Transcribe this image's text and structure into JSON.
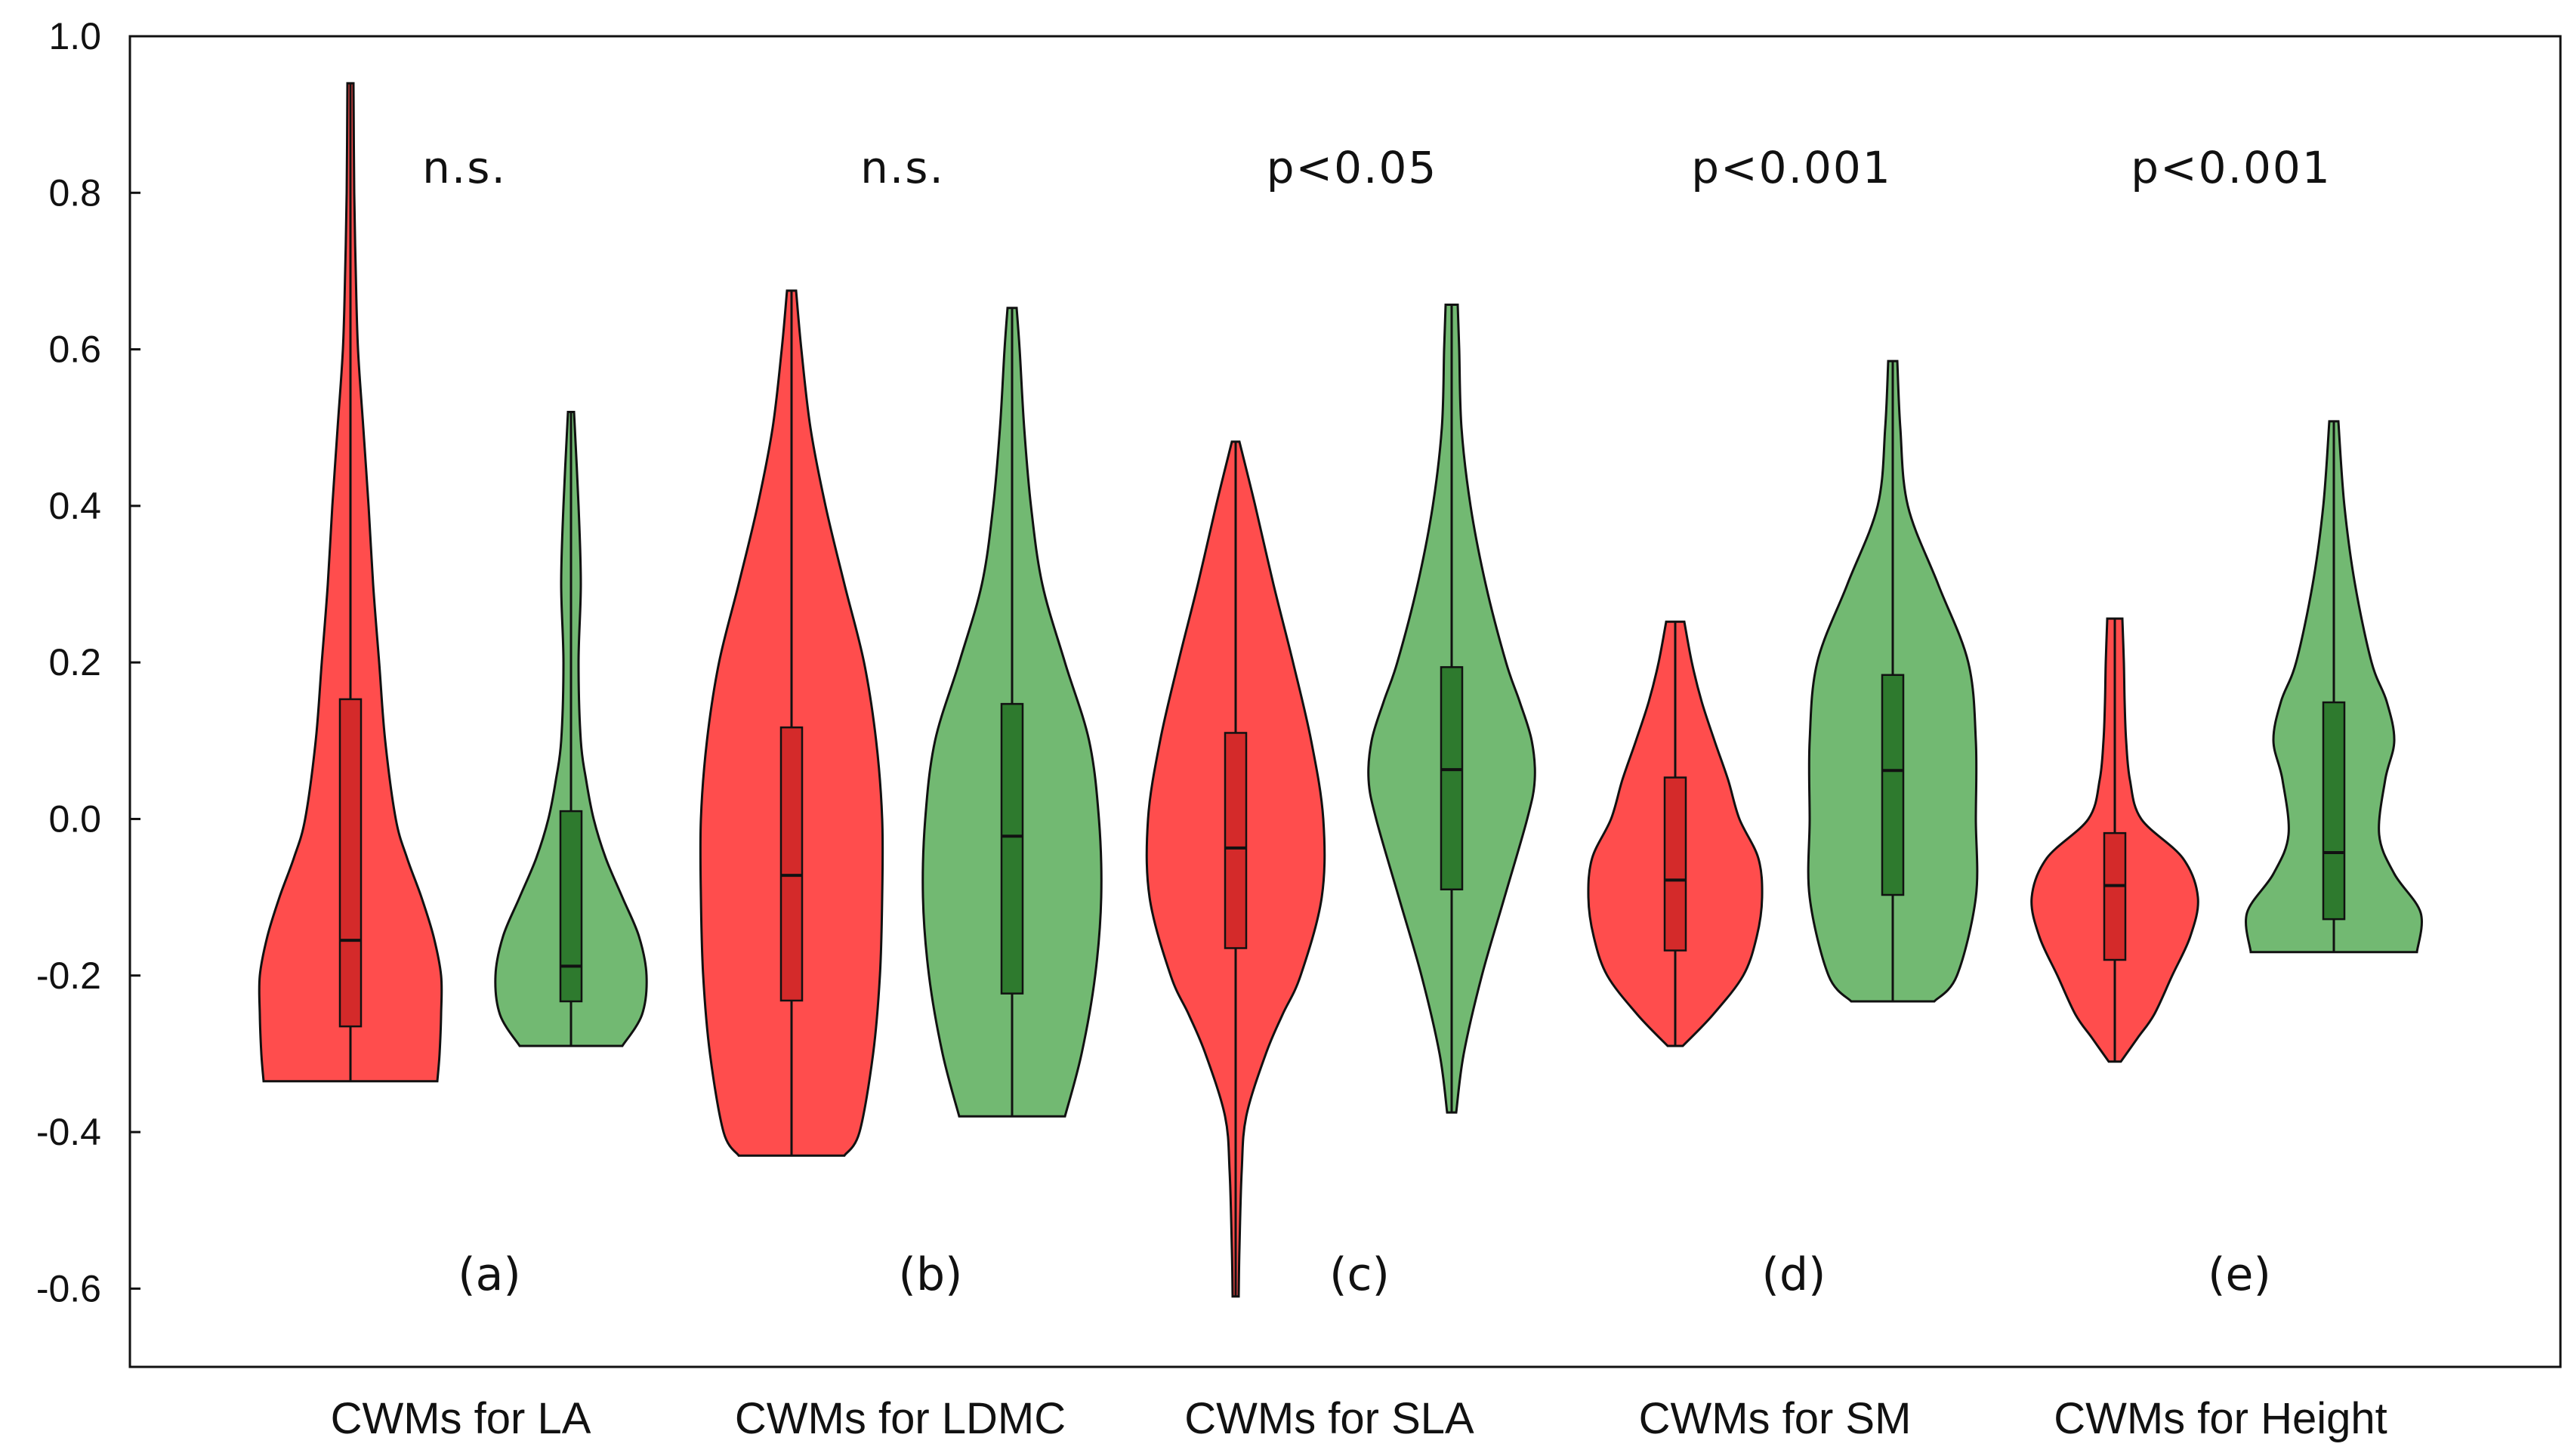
{
  "chart_data": {
    "type": "violin",
    "ylim": [
      -0.7,
      1.0
    ],
    "yticks": [
      1.0,
      0.8,
      0.6,
      0.4,
      0.2,
      0.0,
      -0.2,
      -0.4,
      -0.6
    ],
    "ytick_labels": [
      "1.0",
      "0.8",
      "0.6",
      "0.4",
      "0.2",
      "0.0",
      "-0.2",
      "-0.4",
      "-0.6"
    ],
    "categories": [
      "CWMs for LA",
      "CWMs for LDMC",
      "CWMs for SLA",
      "CWMs for SM",
      "CWMs for Height"
    ],
    "significance": [
      "n.s.",
      "n.s.",
      "p<0.05",
      "p<0.001",
      "p<0.001"
    ],
    "panel_labels": [
      "(a)",
      "(b)",
      "(c)",
      "(d)",
      "(e)"
    ],
    "colors": {
      "red_fill": "#ff4d4d",
      "red_box": "#d42a2a",
      "green_fill": "#72b972",
      "green_box": "#2e7a2e",
      "outline": "#111111"
    },
    "groups": [
      {
        "category": "CWMs for LA",
        "red": {
          "min": -0.335,
          "max": 0.94,
          "q1": -0.265,
          "median": -0.155,
          "q3": 0.153,
          "profile": [
            [
              -0.335,
              0.115
            ],
            [
              -0.3,
              0.118
            ],
            [
              -0.25,
              0.12
            ],
            [
              -0.2,
              0.12
            ],
            [
              -0.15,
              0.11
            ],
            [
              -0.1,
              0.094
            ],
            [
              -0.05,
              0.075
            ],
            [
              0.0,
              0.06
            ],
            [
              0.1,
              0.046
            ],
            [
              0.2,
              0.038
            ],
            [
              0.3,
              0.03
            ],
            [
              0.4,
              0.024
            ],
            [
              0.5,
              0.017
            ],
            [
              0.6,
              0.01
            ],
            [
              0.7,
              0.007
            ],
            [
              0.8,
              0.005
            ],
            [
              0.94,
              0.004
            ]
          ]
        },
        "green": {
          "min": -0.29,
          "max": 0.52,
          "q1": -0.233,
          "median": -0.188,
          "q3": 0.01,
          "profile": [
            [
              -0.29,
              0.068
            ],
            [
              -0.25,
              0.094
            ],
            [
              -0.2,
              0.1
            ],
            [
              -0.15,
              0.09
            ],
            [
              -0.1,
              0.068
            ],
            [
              -0.05,
              0.046
            ],
            [
              0.0,
              0.03
            ],
            [
              0.05,
              0.02
            ],
            [
              0.1,
              0.013
            ],
            [
              0.2,
              0.01
            ],
            [
              0.3,
              0.013
            ],
            [
              0.4,
              0.01
            ],
            [
              0.52,
              0.004
            ]
          ]
        }
      },
      {
        "category": "CWMs for LDMC",
        "red": {
          "min": -0.43,
          "max": 0.675,
          "q1": -0.232,
          "median": -0.072,
          "q3": 0.117,
          "profile": [
            [
              -0.43,
              0.07
            ],
            [
              -0.4,
              0.09
            ],
            [
              -0.3,
              0.108
            ],
            [
              -0.2,
              0.117
            ],
            [
              -0.1,
              0.12
            ],
            [
              0.0,
              0.12
            ],
            [
              0.1,
              0.112
            ],
            [
              0.2,
              0.096
            ],
            [
              0.3,
              0.07
            ],
            [
              0.4,
              0.045
            ],
            [
              0.5,
              0.025
            ],
            [
              0.6,
              0.013
            ],
            [
              0.675,
              0.006
            ]
          ]
        },
        "green": {
          "min": -0.38,
          "max": 0.653,
          "q1": -0.223,
          "median": -0.022,
          "q3": 0.147,
          "profile": [
            [
              -0.38,
              0.07
            ],
            [
              -0.3,
              0.092
            ],
            [
              -0.2,
              0.11
            ],
            [
              -0.1,
              0.118
            ],
            [
              0.0,
              0.115
            ],
            [
              0.1,
              0.102
            ],
            [
              0.2,
              0.07
            ],
            [
              0.3,
              0.04
            ],
            [
              0.4,
              0.025
            ],
            [
              0.5,
              0.016
            ],
            [
              0.6,
              0.01
            ],
            [
              0.653,
              0.006
            ]
          ]
        }
      },
      {
        "category": "CWMs for SLA",
        "red": {
          "min": -0.61,
          "max": 0.482,
          "q1": -0.165,
          "median": -0.037,
          "q3": 0.11,
          "profile": [
            [
              -0.61,
              0.004
            ],
            [
              -0.55,
              0.005
            ],
            [
              -0.45,
              0.008
            ],
            [
              -0.38,
              0.014
            ],
            [
              -0.3,
              0.04
            ],
            [
              -0.25,
              0.062
            ],
            [
              -0.2,
              0.086
            ],
            [
              -0.1,
              0.114
            ],
            [
              0.0,
              0.116
            ],
            [
              0.1,
              0.1
            ],
            [
              0.2,
              0.076
            ],
            [
              0.3,
              0.05
            ],
            [
              0.4,
              0.026
            ],
            [
              0.482,
              0.005
            ]
          ]
        },
        "green": {
          "min": -0.375,
          "max": 0.657,
          "q1": -0.09,
          "median": 0.063,
          "q3": 0.194,
          "profile": [
            [
              -0.375,
              0.006
            ],
            [
              -0.3,
              0.016
            ],
            [
              -0.2,
              0.04
            ],
            [
              -0.1,
              0.07
            ],
            [
              0.0,
              0.1
            ],
            [
              0.05,
              0.11
            ],
            [
              0.1,
              0.106
            ],
            [
              0.15,
              0.09
            ],
            [
              0.2,
              0.072
            ],
            [
              0.3,
              0.045
            ],
            [
              0.4,
              0.025
            ],
            [
              0.5,
              0.013
            ],
            [
              0.6,
              0.01
            ],
            [
              0.657,
              0.008
            ]
          ]
        }
      },
      {
        "category": "CWMs for SM",
        "red": {
          "min": -0.29,
          "max": 0.252,
          "q1": -0.168,
          "median": -0.078,
          "q3": 0.053,
          "profile": [
            [
              -0.29,
              0.01
            ],
            [
              -0.25,
              0.05
            ],
            [
              -0.2,
              0.09
            ],
            [
              -0.15,
              0.108
            ],
            [
              -0.1,
              0.115
            ],
            [
              -0.05,
              0.11
            ],
            [
              0.0,
              0.085
            ],
            [
              0.05,
              0.07
            ],
            [
              0.1,
              0.052
            ],
            [
              0.15,
              0.035
            ],
            [
              0.2,
              0.022
            ],
            [
              0.252,
              0.012
            ]
          ]
        },
        "green": {
          "min": -0.233,
          "max": 0.585,
          "q1": -0.097,
          "median": 0.062,
          "q3": 0.184,
          "profile": [
            [
              -0.233,
              0.055
            ],
            [
              -0.2,
              0.085
            ],
            [
              -0.1,
              0.11
            ],
            [
              0.0,
              0.11
            ],
            [
              0.1,
              0.11
            ],
            [
              0.2,
              0.1
            ],
            [
              0.3,
              0.06
            ],
            [
              0.4,
              0.02
            ],
            [
              0.5,
              0.01
            ],
            [
              0.585,
              0.006
            ]
          ]
        }
      },
      {
        "category": "CWMs for Height",
        "red": {
          "min": -0.31,
          "max": 0.256,
          "q1": -0.18,
          "median": -0.085,
          "q3": -0.018,
          "profile": [
            [
              -0.31,
              0.008
            ],
            [
              -0.28,
              0.03
            ],
            [
              -0.25,
              0.052
            ],
            [
              -0.2,
              0.076
            ],
            [
              -0.15,
              0.1
            ],
            [
              -0.1,
              0.11
            ],
            [
              -0.05,
              0.09
            ],
            [
              0.0,
              0.035
            ],
            [
              0.05,
              0.02
            ],
            [
              0.1,
              0.015
            ],
            [
              0.15,
              0.013
            ],
            [
              0.2,
              0.012
            ],
            [
              0.256,
              0.01
            ]
          ]
        },
        "green": {
          "min": -0.17,
          "max": 0.508,
          "q1": -0.128,
          "median": -0.043,
          "q3": 0.149,
          "profile": [
            [
              -0.17,
              0.11
            ],
            [
              -0.12,
              0.115
            ],
            [
              -0.07,
              0.08
            ],
            [
              -0.02,
              0.06
            ],
            [
              0.05,
              0.068
            ],
            [
              0.1,
              0.08
            ],
            [
              0.15,
              0.07
            ],
            [
              0.2,
              0.05
            ],
            [
              0.3,
              0.028
            ],
            [
              0.4,
              0.014
            ],
            [
              0.508,
              0.006
            ]
          ]
        }
      }
    ]
  }
}
